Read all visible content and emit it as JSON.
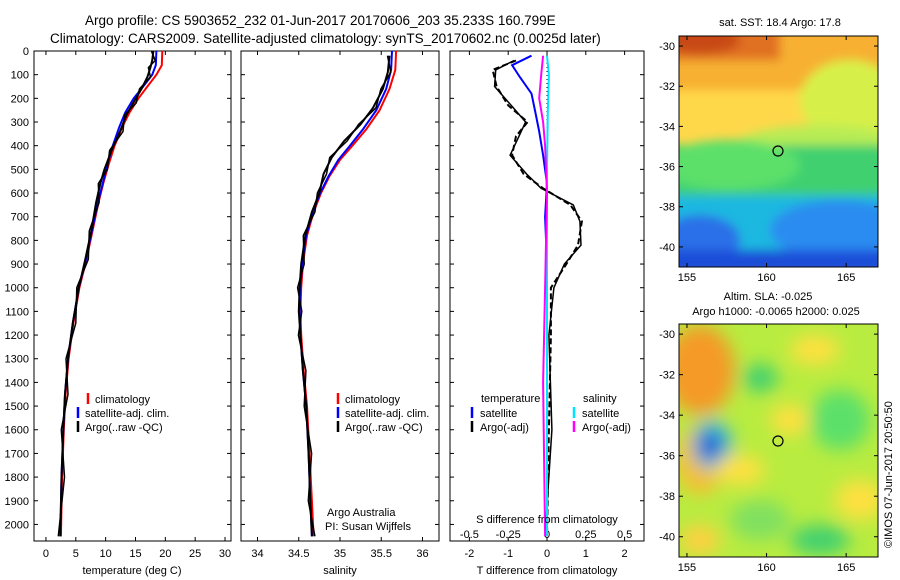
{
  "header": {
    "line1": "Argo profile: CS 5903652_232 01-Jun-2017 20170606_203 35.233S 160.799E",
    "line2": "Climatology: CARS2009. Satellite-adjusted climatology: synTS_20170602.nc (0.0025d later)"
  },
  "side_label": "©IMOS 07-Jun-2017 20:50:50",
  "colors": {
    "climatology": "#ff0000",
    "satellite": "#0000ff",
    "argo": "#000000",
    "salinity_satellite": "#00e5ff",
    "salinity_argo": "#ff00ff"
  },
  "chart_data": [
    {
      "type": "line",
      "panel": "temperature",
      "xlabel": "temperature (deg C)",
      "xlim": [
        -2,
        31
      ],
      "xticks": [
        "0",
        "5",
        "10",
        "15",
        "20",
        "25",
        "30"
      ],
      "ylim": [
        2070,
        0
      ],
      "yticks": [
        "0",
        "100",
        "200",
        "300",
        "400",
        "500",
        "600",
        "700",
        "800",
        "900",
        "1000",
        "1100",
        "1200",
        "1300",
        "1400",
        "1500",
        "1600",
        "1700",
        "1800",
        "1900",
        "2000"
      ],
      "legend": [
        "climatology",
        "satellite-adj. clim.",
        "Argo(..raw -QC)"
      ],
      "series": [
        {
          "name": "climatology",
          "color": "#ff0000",
          "points": [
            [
              19.5,
              0
            ],
            [
              19.4,
              60
            ],
            [
              18.5,
              100
            ],
            [
              17,
              150
            ],
            [
              15.5,
              200
            ],
            [
              14,
              260
            ],
            [
              12.8,
              320
            ],
            [
              11.5,
              400
            ],
            [
              10.5,
              480
            ],
            [
              9.6,
              560
            ],
            [
              8.8,
              640
            ],
            [
              7.8,
              760
            ],
            [
              6.8,
              880
            ],
            [
              5.6,
              1000
            ],
            [
              4.6,
              1150
            ],
            [
              3.8,
              1300
            ],
            [
              3.3,
              1450
            ],
            [
              3.0,
              1600
            ],
            [
              2.7,
              1800
            ],
            [
              2.5,
              2050
            ]
          ]
        },
        {
          "name": "satellite-adj. clim.",
          "color": "#0000ff",
          "points": [
            [
              18.5,
              0
            ],
            [
              18.4,
              60
            ],
            [
              17.8,
              100
            ],
            [
              16.3,
              150
            ],
            [
              14.7,
              200
            ],
            [
              13.3,
              260
            ],
            [
              12.3,
              320
            ],
            [
              11.2,
              400
            ],
            [
              10.3,
              480
            ],
            [
              9.5,
              560
            ],
            [
              8.7,
              640
            ],
            [
              7.7,
              760
            ],
            [
              6.7,
              880
            ],
            [
              5.5,
              1000
            ],
            [
              4.5,
              1150
            ],
            [
              3.7,
              1300
            ],
            [
              3.2,
              1450
            ],
            [
              2.9,
              1600
            ],
            [
              2.6,
              1800
            ],
            [
              2.4,
              2050
            ]
          ]
        },
        {
          "name": "Argo(..raw -QC)",
          "color": "#000000",
          "points": [
            [
              18.0,
              0
            ],
            [
              17.8,
              40
            ],
            [
              17.5,
              70
            ],
            [
              17,
              110
            ],
            [
              16,
              160
            ],
            [
              14.6,
              220
            ],
            [
              13.5,
              270
            ],
            [
              12.4,
              340
            ],
            [
              11.0,
              420
            ],
            [
              9.8,
              500
            ],
            [
              9.1,
              560
            ],
            [
              8.4,
              640
            ],
            [
              7.6,
              760
            ],
            [
              6.6,
              880
            ],
            [
              5.5,
              1000
            ],
            [
              4.5,
              1150
            ],
            [
              3.7,
              1300
            ],
            [
              3.2,
              1450
            ],
            [
              2.9,
              1600
            ],
            [
              2.6,
              1800
            ],
            [
              2.4,
              2050
            ]
          ]
        }
      ]
    },
    {
      "type": "line",
      "panel": "salinity",
      "xlabel": "salinity",
      "xlim": [
        33.8,
        36.2
      ],
      "xticks": [
        "34",
        "34.5",
        "35",
        "35.5",
        "36"
      ],
      "ylim": [
        2070,
        0
      ],
      "legend": [
        "climatology",
        "satellite-adj. clim.",
        "Argo(..raw -QC)"
      ],
      "annotation": [
        "Argo Australia",
        "PI: Susan Wijffels"
      ],
      "series": [
        {
          "name": "climatology",
          "color": "#ff0000",
          "points": [
            [
              35.68,
              0
            ],
            [
              35.67,
              80
            ],
            [
              35.6,
              160
            ],
            [
              35.48,
              250
            ],
            [
              35.32,
              330
            ],
            [
              35.15,
              400
            ],
            [
              35.0,
              460
            ],
            [
              34.87,
              530
            ],
            [
              34.77,
              600
            ],
            [
              34.68,
              680
            ],
            [
              34.6,
              780
            ],
            [
              34.55,
              900
            ],
            [
              34.53,
              1000
            ],
            [
              34.52,
              1100
            ],
            [
              34.53,
              1200
            ],
            [
              34.56,
              1350
            ],
            [
              34.6,
              1500
            ],
            [
              34.63,
              1700
            ],
            [
              34.66,
              1900
            ],
            [
              34.68,
              2050
            ]
          ]
        },
        {
          "name": "satellite-adj. clim.",
          "color": "#0000ff",
          "points": [
            [
              35.63,
              0
            ],
            [
              35.62,
              80
            ],
            [
              35.56,
              160
            ],
            [
              35.44,
              250
            ],
            [
              35.28,
              330
            ],
            [
              35.12,
              400
            ],
            [
              34.98,
              460
            ],
            [
              34.86,
              530
            ],
            [
              34.76,
              600
            ],
            [
              34.67,
              680
            ],
            [
              34.59,
              780
            ],
            [
              34.54,
              900
            ],
            [
              34.52,
              1000
            ],
            [
              34.51,
              1100
            ],
            [
              34.52,
              1200
            ],
            [
              34.55,
              1350
            ],
            [
              34.59,
              1500
            ],
            [
              34.62,
              1700
            ],
            [
              34.64,
              1900
            ],
            [
              34.66,
              2050
            ]
          ]
        },
        {
          "name": "Argo(..raw -QC)",
          "color": "#000000",
          "points": [
            [
              35.6,
              20
            ],
            [
              35.58,
              90
            ],
            [
              35.52,
              160
            ],
            [
              35.4,
              240
            ],
            [
              35.25,
              310
            ],
            [
              35.05,
              380
            ],
            [
              34.9,
              450
            ],
            [
              34.8,
              520
            ],
            [
              34.75,
              600
            ],
            [
              34.66,
              680
            ],
            [
              34.58,
              780
            ],
            [
              34.53,
              900
            ],
            [
              34.51,
              1000
            ],
            [
              34.5,
              1100
            ],
            [
              34.52,
              1200
            ],
            [
              34.55,
              1350
            ],
            [
              34.59,
              1500
            ],
            [
              34.62,
              1700
            ],
            [
              34.64,
              1900
            ],
            [
              34.66,
              2050
            ]
          ]
        }
      ]
    },
    {
      "type": "line",
      "panel": "difference",
      "xlabel": "T difference from climatology",
      "xlim": [
        -2.5,
        2.5
      ],
      "xticks": [
        "-2",
        "-1",
        "0",
        "1",
        "2"
      ],
      "top_xlabel": "S difference from climatology",
      "top_xticks": [
        "-0.5",
        "-0.25",
        "0",
        "0.25",
        "0.5"
      ],
      "ylim": [
        2070,
        0
      ],
      "legend": {
        "temperature_header": "temperature",
        "salinity_header": "salinity",
        "satellite": "satellite",
        "argo": "Argo(-adj)"
      },
      "series": [
        {
          "name": "satellite",
          "color": "#0000ff",
          "points": [
            [
              -0.4,
              20
            ],
            [
              -0.9,
              60
            ],
            [
              -0.7,
              110
            ],
            [
              -0.4,
              180
            ],
            [
              -0.3,
              260
            ],
            [
              -0.2,
              340
            ],
            [
              -0.1,
              440
            ],
            [
              0,
              560
            ],
            [
              -0.05,
              700
            ],
            [
              0,
              900
            ],
            [
              0,
              1200
            ],
            [
              0,
              1600
            ],
            [
              0,
              2050
            ]
          ]
        },
        {
          "name": "Argo(-adj)",
          "color": "#000000",
          "points": [
            [
              -0.8,
              40
            ],
            [
              -1.4,
              80
            ],
            [
              -1.3,
              150
            ],
            [
              -1.0,
              230
            ],
            [
              -0.5,
              300
            ],
            [
              -0.8,
              360
            ],
            [
              -0.9,
              440
            ],
            [
              -0.6,
              520
            ],
            [
              -0.1,
              580
            ],
            [
              0.6,
              650
            ],
            [
              0.9,
              720
            ],
            [
              0.8,
              820
            ],
            [
              0.5,
              900
            ],
            [
              0.1,
              1000
            ],
            [
              0.1,
              1200
            ],
            [
              0.05,
              1600
            ],
            [
              0,
              2050
            ]
          ]
        },
        {
          "name": "salinity satellite",
          "color": "#00e5ff",
          "points": [
            [
              0,
              20
            ],
            [
              0.05,
              100
            ],
            [
              0.02,
              260
            ],
            [
              0,
              500
            ],
            [
              0,
              1000
            ],
            [
              0,
              2050
            ]
          ]
        },
        {
          "name": "salinity Argo(-adj)",
          "color": "#ff00ff",
          "points": [
            [
              -0.1,
              20
            ],
            [
              -0.15,
              100
            ],
            [
              -0.2,
              200
            ],
            [
              -0.1,
              300
            ],
            [
              -0.05,
              400
            ],
            [
              0,
              600
            ],
            [
              -0.05,
              1000
            ],
            [
              -0.1,
              1400
            ],
            [
              -0.05,
              2050
            ]
          ]
        }
      ]
    },
    {
      "type": "heatmap",
      "panel": "sst-map",
      "title": "sat. SST: 18.4  Argo: 17.8",
      "xlim": [
        154.5,
        167
      ],
      "ylim": [
        -41,
        -29.5
      ],
      "xticks": [
        "155",
        "160",
        "165"
      ],
      "yticks": [
        "-30",
        "-32",
        "-34",
        "-36",
        "-38",
        "-40"
      ],
      "marker": {
        "lon": 160.8,
        "lat": -35.2
      }
    },
    {
      "type": "heatmap",
      "panel": "sla-map",
      "title_lines": [
        "Altim. SLA: -0.025",
        "Argo h1000: -0.0065 h2000: 0.025"
      ],
      "xlim": [
        154.5,
        167
      ],
      "ylim": [
        -41,
        -29.5
      ],
      "xticks": [
        "155",
        "160",
        "165"
      ],
      "yticks": [
        "-30",
        "-32",
        "-34",
        "-36",
        "-38",
        "-40"
      ],
      "marker": {
        "lon": 160.8,
        "lat": -35.2
      }
    }
  ]
}
